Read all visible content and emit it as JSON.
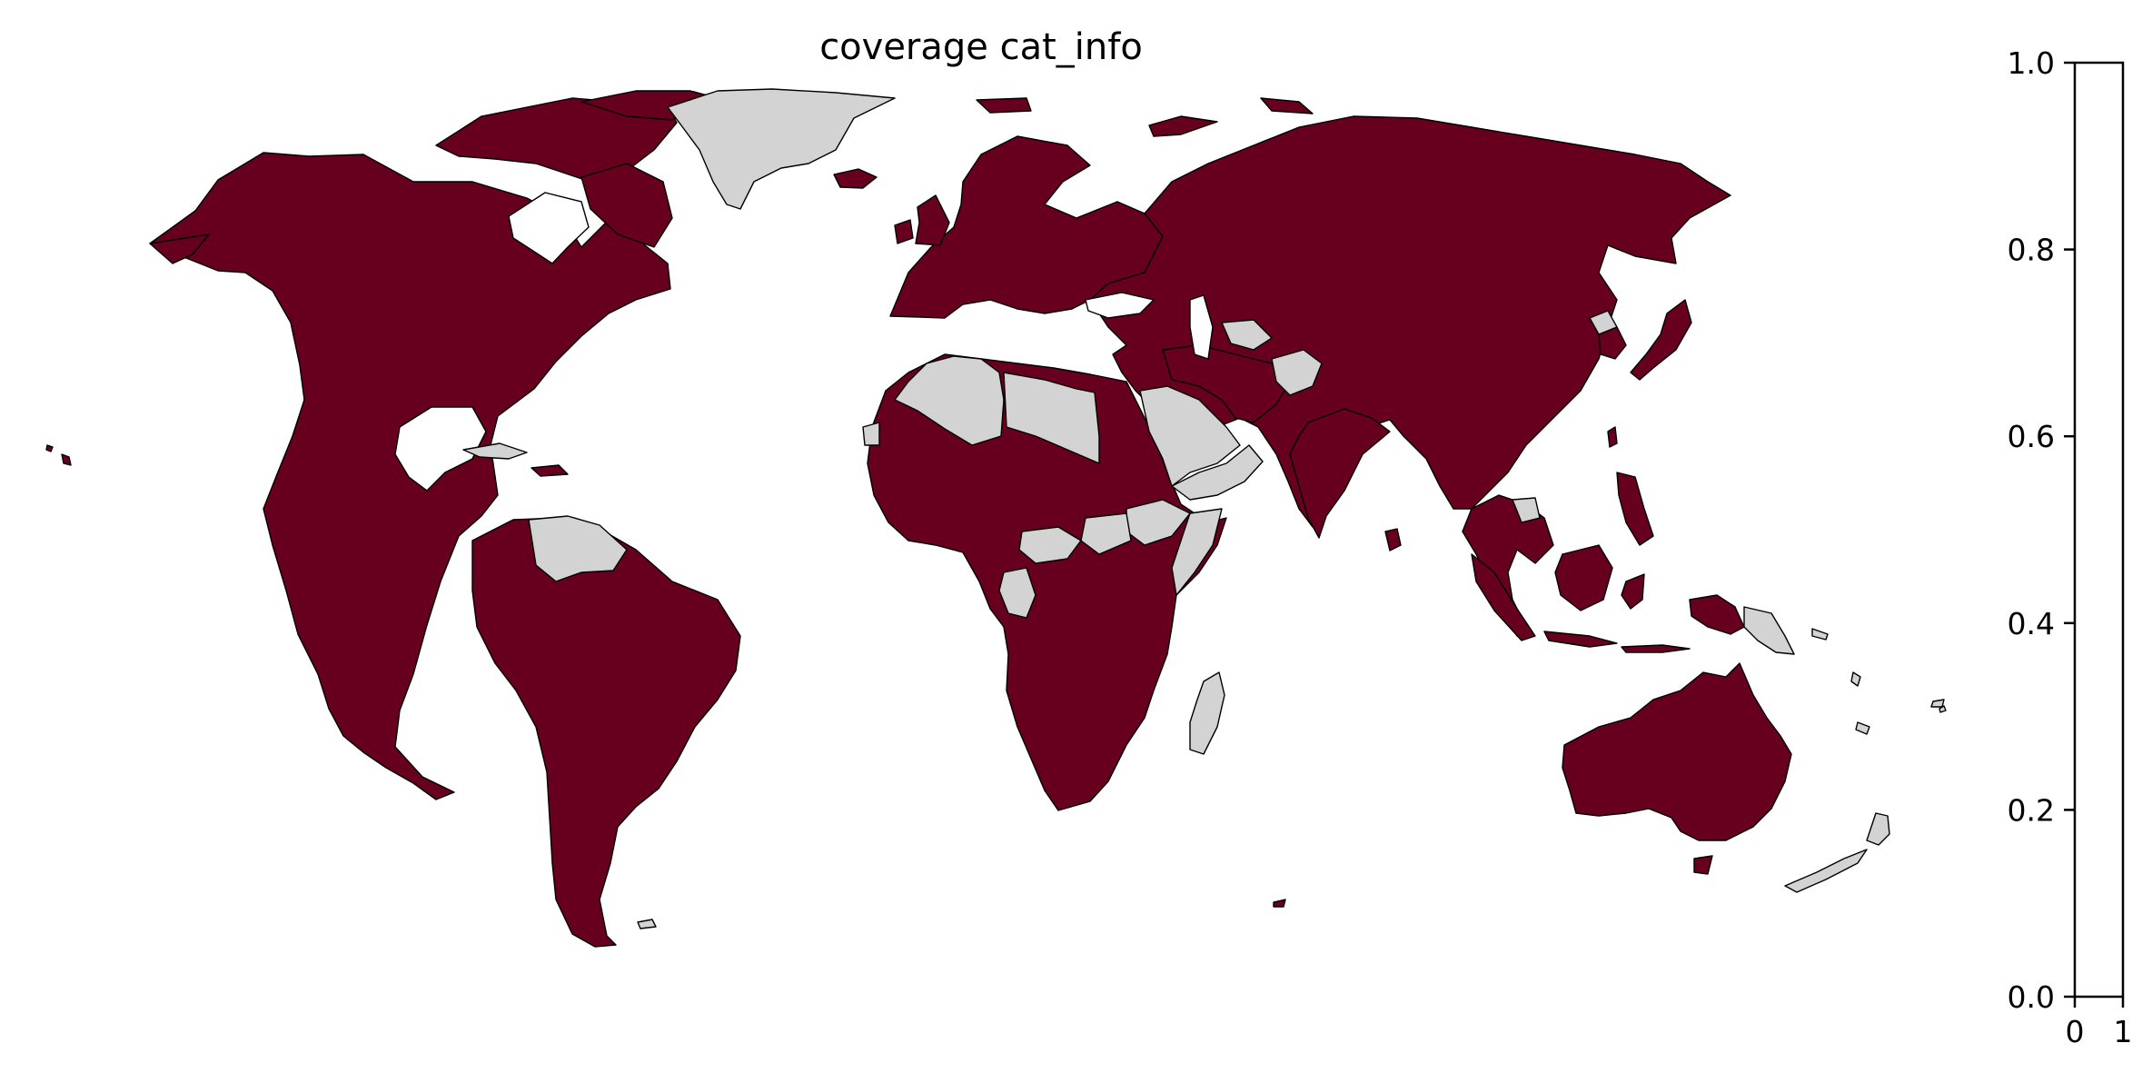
{
  "title": "coverage cat_info",
  "colors": {
    "covered": "#67001f",
    "not_covered": "#d3d3d3",
    "border": "#000000",
    "background": "#ffffff"
  },
  "colorbar": {
    "y_ticks": [
      "0.0",
      "0.2",
      "0.4",
      "0.6",
      "0.8",
      "1.0"
    ],
    "x_ticks": [
      "0",
      "1"
    ],
    "range": [
      0,
      1
    ]
  },
  "map": {
    "projection": "plate-carree",
    "covered_regions": [
      "North America",
      "Central America",
      "Caribbean",
      "South America",
      "Europe",
      "Russia",
      "Central Asia",
      "China",
      "Japan",
      "Korea",
      "India",
      "Southeast Asia",
      "Indonesia",
      "Philippines",
      "Australia",
      "Tasmania",
      "Iceland",
      "United Kingdom",
      "Ireland",
      "Canadian Arctic",
      "West Africa",
      "Central Africa",
      "East Africa",
      "Southern Africa",
      "Egypt",
      "Sudan",
      "Turkey",
      "Iran",
      "Iraq",
      "Syria",
      "Hawaii",
      "Sri Lanka",
      "Taiwan",
      "Svalbard",
      "Novaya Zemlya"
    ],
    "not_covered_regions": [
      "Greenland",
      "Algeria",
      "Libya",
      "Western Sahara",
      "Saudi Arabia",
      "Yemen",
      "Oman",
      "Afghanistan",
      "Turkmenistan",
      "Somalia",
      "Ethiopia",
      "South Sudan",
      "Central African Republic",
      "Gabon",
      "Republic of the Congo",
      "Madagascar",
      "New Zealand",
      "Papua New Guinea",
      "Venezuela",
      "Guyana",
      "Suriname",
      "Cuba",
      "North Korea",
      "Cambodia",
      "Solomon Islands",
      "Vanuatu",
      "Fiji",
      "New Caledonia",
      "Falkland Islands"
    ]
  }
}
